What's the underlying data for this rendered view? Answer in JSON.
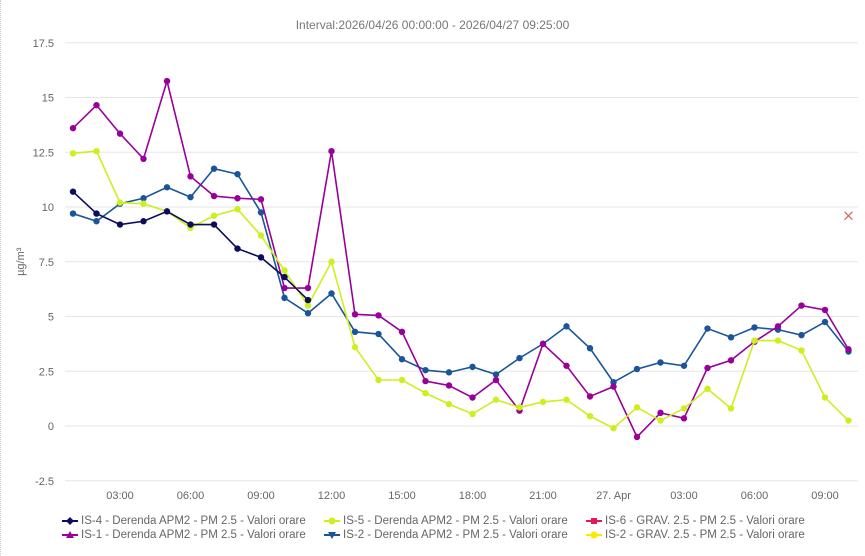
{
  "chart_data": {
    "type": "line",
    "title": "Interval:2026/04/26 00:00:00 - 2026/04/27 09:25:00",
    "xlabel": "",
    "ylabel": "µg/m³",
    "ylim": [
      -2.5,
      17.5
    ],
    "yticks": [
      "17.5",
      "15",
      "12.5",
      "10",
      "7.5",
      "5",
      "2.5",
      "0",
      "-2.5"
    ],
    "ytick_values": [
      17.5,
      15,
      12.5,
      10,
      7.5,
      5,
      2.5,
      0,
      -2.5
    ],
    "x_unit": "hours since 2026/04/26 00:00",
    "xticks": [
      {
        "h": 3,
        "label": "03:00"
      },
      {
        "h": 6,
        "label": "06:00"
      },
      {
        "h": 9,
        "label": "09:00"
      },
      {
        "h": 12,
        "label": "12:00"
      },
      {
        "h": 15,
        "label": "15:00"
      },
      {
        "h": 18,
        "label": "18:00"
      },
      {
        "h": 21,
        "label": "21:00"
      },
      {
        "h": 24,
        "label": "27. Apr"
      },
      {
        "h": 27,
        "label": "03:00"
      },
      {
        "h": 30,
        "label": "06:00"
      },
      {
        "h": 33,
        "label": "09:00"
      }
    ],
    "grid": true,
    "legend_position": "bottom",
    "series": [
      {
        "name": "IS-4 - Derenda APM2 - PM 2.5 - Valori orare",
        "color": "#0d0d5e",
        "marker": "circle",
        "start_h": 1,
        "values": [
          10.7,
          9.7,
          9.2,
          9.35,
          9.8,
          9.2,
          9.2,
          8.1,
          7.7,
          6.8,
          5.75
        ]
      },
      {
        "name": "IS-5 - Derenda APM2 - PM 2.5 - Valori orare",
        "color": "#ccf01e",
        "marker": "circle",
        "start_h": 1,
        "values": [
          12.45,
          12.55,
          10.2,
          10.15,
          9.8,
          9.05,
          9.6,
          9.9,
          8.7,
          7.1,
          5.5,
          7.5,
          3.6,
          2.1,
          2.1,
          1.5,
          1.0,
          0.55,
          1.2,
          0.85,
          1.1,
          1.2,
          0.45,
          -0.1,
          0.85,
          0.25,
          0.8,
          1.7,
          0.8,
          3.9,
          3.9,
          3.45,
          1.3,
          0.25
        ]
      },
      {
        "name": "IS-6 - GRAV. 2.5 - PM 2.5 - Valori orare",
        "color": "#e8175d",
        "marker": "square",
        "start_h": 1,
        "values": []
      },
      {
        "name": "IS-1 - Derenda APM2 - PM 2.5 - Valori orare",
        "color": "#990099",
        "marker": "circle",
        "start_h": 1,
        "values": [
          13.6,
          14.65,
          13.35,
          12.2,
          15.75,
          11.4,
          10.5,
          10.4,
          10.35,
          6.3,
          6.3,
          12.55,
          5.1,
          5.05,
          4.3,
          2.05,
          1.85,
          1.3,
          2.1,
          0.7,
          3.75,
          2.75,
          1.35,
          1.8,
          -0.5,
          0.6,
          0.35,
          2.65,
          3.0,
          3.85,
          4.55,
          5.5,
          5.3,
          3.5
        ]
      },
      {
        "name": "IS-2 - Derenda APM2 - PM 2.5 - Valori orare",
        "color": "#1a5599",
        "marker": "circle",
        "start_h": 1,
        "values": [
          9.7,
          9.35,
          10.15,
          10.4,
          10.9,
          10.45,
          11.75,
          11.5,
          9.75,
          5.85,
          5.15,
          6.05,
          4.3,
          4.2,
          3.05,
          2.55,
          2.45,
          2.7,
          2.35,
          3.1,
          3.75,
          4.55,
          3.55,
          2.0,
          2.6,
          2.9,
          2.75,
          4.45,
          4.05,
          4.5,
          4.4,
          4.15,
          4.75,
          3.4
        ]
      },
      {
        "name": "IS-2 - GRAV. 2.5 - PM 2.5 - Valori orare",
        "color": "#ffe800",
        "marker": "circle",
        "start_h": 1,
        "values": []
      }
    ],
    "annotations": [
      {
        "type": "x-marker",
        "h": 34,
        "value": 9.6,
        "color": "#c0392b"
      }
    ]
  }
}
